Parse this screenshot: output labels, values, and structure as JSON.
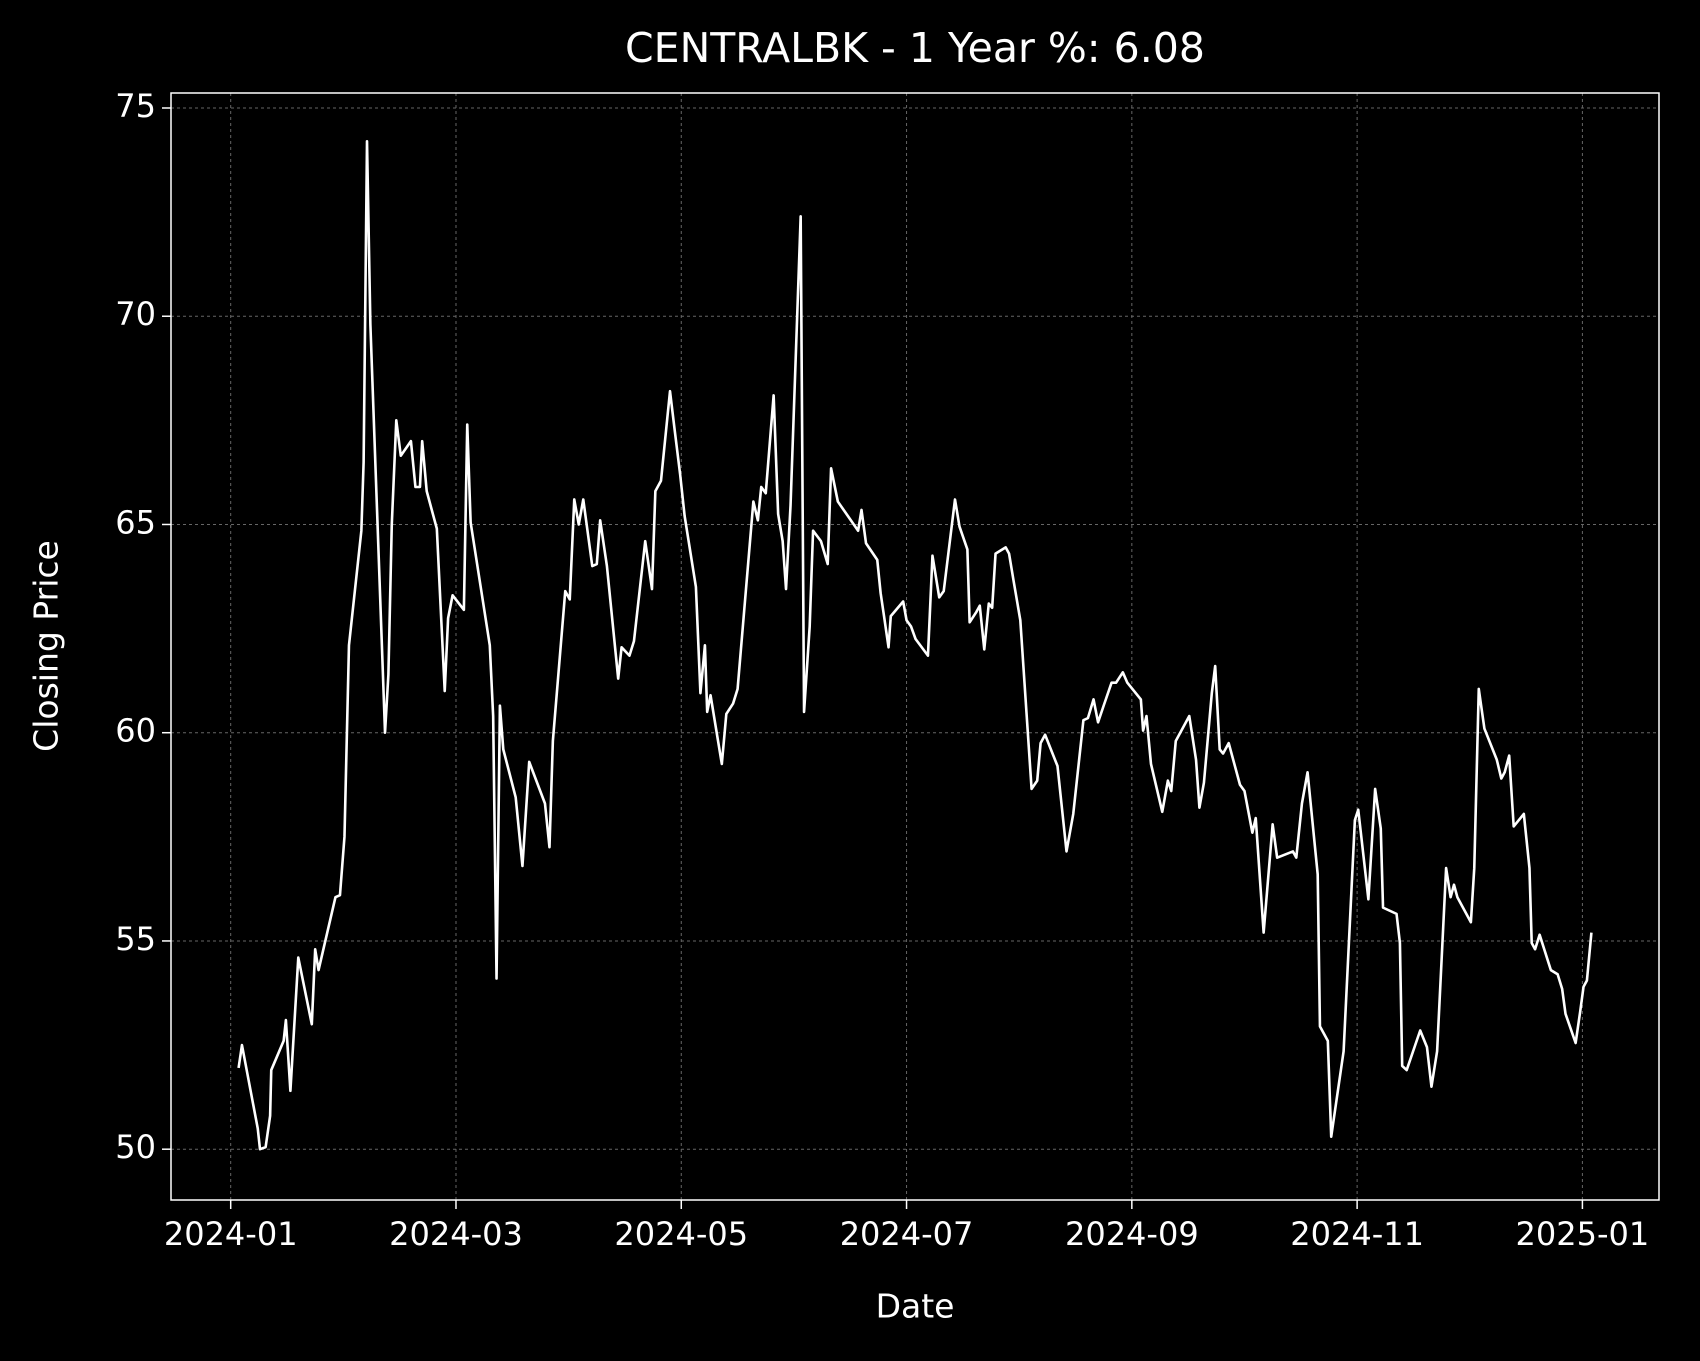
{
  "chart_data": {
    "type": "line",
    "title": "CENTRALBK - 1 Year %: 6.08",
    "x_label": "Date",
    "y_label": "Closing Price",
    "color": "#ffffff",
    "grid": true,
    "xlim": [
      -0.53,
      12.68
    ],
    "ylim": [
      48.78,
      75.36
    ],
    "xticks": [
      {
        "value": 0,
        "label": "2024-01"
      },
      {
        "value": 2,
        "label": "2024-03"
      },
      {
        "value": 4,
        "label": "2024-05"
      },
      {
        "value": 6,
        "label": "2024-07"
      },
      {
        "value": 8,
        "label": "2024-09"
      },
      {
        "value": 10,
        "label": "2024-11"
      },
      {
        "value": 12,
        "label": "2025-01"
      }
    ],
    "yticks": [
      50,
      55,
      60,
      65,
      70,
      75
    ],
    "x": [
      0.07,
      0.1,
      0.24,
      0.26,
      0.31,
      0.35,
      0.36,
      0.47,
      0.49,
      0.53,
      0.6,
      0.72,
      0.75,
      0.78,
      0.93,
      0.97,
      1.01,
      1.05,
      1.16,
      1.18,
      1.21,
      1.24,
      1.37,
      1.4,
      1.43,
      1.47,
      1.51,
      1.6,
      1.64,
      1.68,
      1.7,
      1.74,
      1.83,
      1.9,
      1.93,
      1.97,
      2.07,
      2.1,
      2.13,
      2.3,
      2.33,
      2.36,
      2.39,
      2.42,
      2.53,
      2.59,
      2.65,
      2.79,
      2.83,
      2.86,
      2.97,
      3.01,
      3.05,
      3.09,
      3.13,
      3.21,
      3.25,
      3.28,
      3.34,
      3.44,
      3.47,
      3.54,
      3.58,
      3.68,
      3.74,
      3.77,
      3.82,
      3.9,
      3.94,
      3.99,
      4.03,
      4.13,
      4.17,
      4.21,
      4.23,
      4.26,
      4.36,
      4.4,
      4.46,
      4.5,
      4.64,
      4.68,
      4.71,
      4.75,
      4.82,
      4.86,
      4.9,
      4.93,
      4.97,
      5.06,
      5.09,
      5.14,
      5.17,
      5.24,
      5.3,
      5.33,
      5.39,
      5.57,
      5.6,
      5.64,
      5.74,
      5.77,
      5.8,
      5.84,
      5.86,
      5.97,
      6.0,
      6.04,
      6.08,
      6.19,
      6.23,
      6.29,
      6.33,
      6.43,
      6.47,
      6.54,
      6.56,
      6.62,
      6.65,
      6.69,
      6.73,
      6.76,
      6.79,
      6.88,
      6.91,
      6.95,
      7.01,
      7.11,
      7.16,
      7.19,
      7.23,
      7.34,
      7.42,
      7.48,
      7.57,
      7.61,
      7.66,
      7.7,
      7.75,
      7.82,
      7.86,
      7.92,
      7.96,
      8.08,
      8.1,
      8.13,
      8.17,
      8.27,
      8.32,
      8.35,
      8.39,
      8.51,
      8.57,
      8.6,
      8.64,
      8.71,
      8.74,
      8.78,
      8.81,
      8.86,
      8.96,
      9.0,
      9.07,
      9.1,
      9.17,
      9.25,
      9.29,
      9.43,
      9.46,
      9.51,
      9.56,
      9.65,
      9.67,
      9.74,
      9.77,
      9.88,
      9.98,
      10.01,
      10.1,
      10.16,
      10.21,
      10.23,
      10.35,
      10.38,
      10.4,
      10.44,
      10.56,
      10.62,
      10.66,
      10.71,
      10.79,
      10.83,
      10.86,
      10.89,
      11.01,
      11.04,
      11.08,
      11.13,
      11.24,
      11.28,
      11.31,
      11.35,
      11.39,
      11.48,
      11.53,
      11.55,
      11.58,
      11.62,
      11.72,
      11.78,
      11.82,
      11.85,
      11.94,
      11.98,
      12.01,
      12.04,
      12.08
    ],
    "values": [
      51.95,
      52.5,
      50.5,
      50,
      50.05,
      50.8,
      51.9,
      52.6,
      53.1,
      51.4,
      54.6,
      53.0,
      54.8,
      54.3,
      56.05,
      56.1,
      57.5,
      62.1,
      64.85,
      66.5,
      74.2,
      69.8,
      60,
      61.4,
      65,
      67.5,
      66.65,
      67,
      65.9,
      65.9,
      67,
      65.8,
      64.9,
      61,
      62.75,
      63.3,
      62.95,
      67.4,
      65.05,
      62.1,
      60.4,
      54.1,
      60.65,
      59.6,
      58.45,
      56.8,
      59.3,
      58.3,
      57.25,
      59.8,
      63.4,
      63.2,
      65.6,
      65,
      65.6,
      64,
      64.05,
      65.1,
      64,
      61.3,
      62.05,
      61.85,
      62.2,
      64.6,
      63.45,
      65.8,
      66.05,
      68.2,
      67.3,
      66.2,
      65.2,
      63.5,
      60.95,
      62.1,
      60.5,
      60.9,
      59.25,
      60.45,
      60.7,
      61.05,
      65.55,
      65.1,
      65.9,
      65.75,
      68.1,
      65.25,
      64.6,
      63.45,
      65.45,
      72.4,
      60.5,
      62.55,
      64.85,
      64.6,
      64.05,
      66.35,
      65.55,
      64.85,
      65.35,
      64.55,
      64.15,
      63.35,
      62.8,
      62.05,
      62.8,
      63.15,
      62.7,
      62.55,
      62.25,
      61.85,
      64.25,
      63.25,
      63.4,
      65.6,
      64.95,
      64.4,
      62.65,
      62.9,
      63.05,
      62,
      63.1,
      63,
      64.3,
      64.45,
      64.3,
      63.65,
      62.7,
      58.65,
      58.85,
      59.75,
      59.95,
      59.2,
      57.15,
      58.05,
      60.3,
      60.35,
      60.8,
      60.25,
      60.65,
      61.2,
      61.2,
      61.45,
      61.2,
      60.8,
      60.05,
      60.4,
      59.25,
      58.1,
      58.85,
      58.6,
      59.8,
      60.4,
      59.35,
      58.2,
      58.8,
      60.95,
      61.6,
      59.6,
      59.5,
      59.75,
      58.75,
      58.6,
      57.6,
      57.95,
      55.2,
      57.8,
      57,
      57.15,
      57,
      58.3,
      59.05,
      56.6,
      52.95,
      52.6,
      50.3,
      52.35,
      57.9,
      58.15,
      56,
      58.65,
      57.7,
      55.8,
      55.65,
      54.95,
      52,
      51.9,
      52.85,
      52.45,
      51.5,
      52.35,
      56.75,
      56.05,
      56.35,
      56.05,
      55.45,
      56.75,
      61.05,
      60.1,
      59.35,
      58.9,
      59.05,
      59.45,
      57.75,
      58.05,
      56.75,
      54.95,
      54.8,
      55.15,
      54.3,
      54.2,
      53.85,
      53.25,
      52.55,
      53.3,
      53.9,
      54.05,
      55.2
    ]
  }
}
